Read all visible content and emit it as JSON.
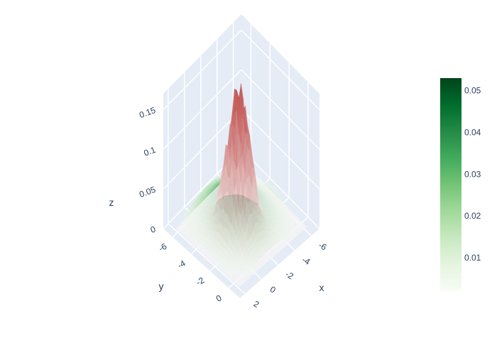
{
  "chart_data": {
    "type": "surface",
    "title": "",
    "x_axis": {
      "label": "x",
      "ticks": [
        "-6",
        "-4",
        "-2",
        "0",
        "2"
      ],
      "tick_values": [
        -6,
        -4,
        -2,
        0,
        2
      ],
      "range": [
        -7,
        2.6
      ]
    },
    "y_axis": {
      "label": "y",
      "ticks": [
        "-6",
        "-4",
        "-2",
        "0"
      ],
      "tick_values": [
        -6,
        -4,
        -2,
        0
      ],
      "range": [
        -7,
        1.2
      ]
    },
    "z_axis": {
      "label": "z",
      "ticks": [
        "0",
        "0.05",
        "0.1",
        "0.15"
      ],
      "tick_values": [
        0,
        0.05,
        0.1,
        0.15
      ],
      "range": [
        0,
        0.17
      ]
    },
    "surfaces": [
      {
        "name": "",
        "kind": "gaussian",
        "peak": 0.16,
        "sigma": 0.95,
        "colorscale": [
          "#f5f5f5",
          "#c0504d"
        ],
        "opacity": 0.75,
        "noisy": true
      },
      {
        "name": "",
        "kind": "gaussian",
        "peak": 0.052,
        "sigma": 2.1,
        "colorscale": [
          "#f7fcf5",
          "#00441b"
        ],
        "opacity": 0.7,
        "noisy": false
      }
    ],
    "colorbar": {
      "ticks": [
        "0.01",
        "0.02",
        "0.03",
        "0.04",
        "0.05"
      ],
      "tick_values": [
        0.01,
        0.02,
        0.03,
        0.04,
        0.05
      ],
      "range": [
        0.002,
        0.053
      ],
      "colors": [
        "#f7fcf5",
        "#e5f5e0",
        "#c7e9c0",
        "#a1d99b",
        "#74c476",
        "#41ab5d",
        "#238b45",
        "#006d2c",
        "#00441b"
      ]
    },
    "grid": true,
    "scene_bg": "#e5ecf6",
    "grid_color": "#ffffff",
    "text_color": "#2a3f5f"
  }
}
